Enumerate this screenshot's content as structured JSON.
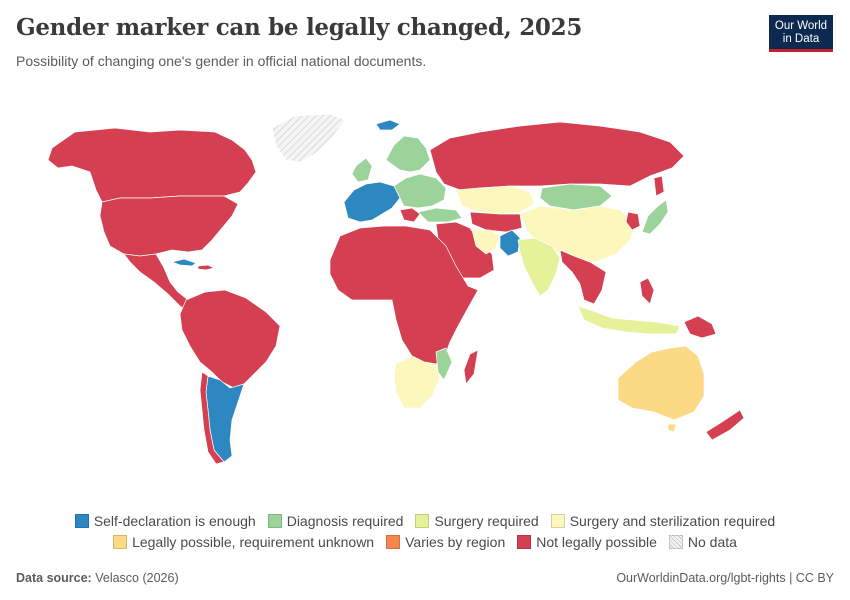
{
  "header": {
    "title": "Gender marker can be legally changed, 2025",
    "subtitle": "Possibility of changing one's gender in official national documents."
  },
  "logo": {
    "line1": "Our World",
    "line2": "in Data"
  },
  "colors": {
    "self_declaration": "#2d87c1",
    "diagnosis": "#9bd39a",
    "surgery": "#e6f29a",
    "surgery_sterilization": "#fbf7bd",
    "unknown": "#fcd985",
    "varies": "#f4864e",
    "not_possible": "#d43f51",
    "no_data": "#efefef"
  },
  "legend": {
    "row1": [
      {
        "label": "Self-declaration is enough",
        "color": "#2d87c1"
      },
      {
        "label": "Diagnosis required",
        "color": "#9bd39a"
      },
      {
        "label": "Surgery required",
        "color": "#e6f29a"
      },
      {
        "label": "Surgery and sterilization required",
        "color": "#fbf7bd"
      }
    ],
    "row2": [
      {
        "label": "Legally possible, requirement unknown",
        "color": "#fcd985"
      },
      {
        "label": "Varies by region",
        "color": "#f4864e"
      },
      {
        "label": "Not legally possible",
        "color": "#d43f51"
      },
      {
        "label": "No data",
        "color": "#efefef"
      }
    ]
  },
  "footer": {
    "source_label": "Data source:",
    "source_value": "Velasco (2026)",
    "url": "OurWorldinData.org/lgbt-rights | CC BY"
  }
}
